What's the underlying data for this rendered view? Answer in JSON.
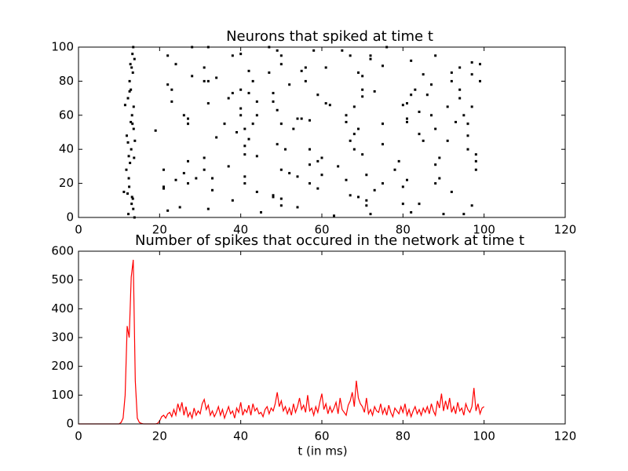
{
  "chart_data": [
    {
      "type": "scatter",
      "title": "Neurons that spiked at time t",
      "color": "#000000",
      "xlim": [
        0,
        120
      ],
      "xticks": [
        0,
        20,
        40,
        60,
        80,
        100,
        120
      ],
      "ylim": [
        0,
        100
      ],
      "yticks": [
        0,
        20,
        40,
        60,
        80,
        100
      ],
      "x": [
        11.2,
        12.1,
        12.3,
        11.8,
        11.9,
        11.5,
        12.2,
        12.6,
        12.8,
        13.3,
        13.5,
        13.1,
        12.9,
        13.2,
        13.6,
        13.0,
        12.7,
        12.4,
        12.5,
        13.1,
        13.4,
        13.8,
        13.5,
        13.2,
        13.7,
        13.9,
        13.3,
        13.6,
        13.4,
        13.8,
        12.4,
        12.2,
        12.9,
        12.6,
        19,
        21,
        21,
        21,
        22,
        22,
        22,
        23,
        23,
        24,
        24,
        25,
        26,
        26,
        27,
        27,
        27,
        27,
        28,
        28,
        29,
        31,
        31,
        31,
        31,
        32,
        32,
        32,
        32,
        33,
        33,
        34,
        34,
        36,
        37,
        37,
        38,
        38,
        38,
        39,
        40,
        40,
        40,
        40,
        41,
        41,
        41,
        41,
        41,
        42,
        42,
        42,
        43,
        43,
        44,
        44,
        44,
        44,
        45,
        47,
        47,
        48,
        48,
        48,
        48,
        49,
        49,
        49,
        50,
        50,
        50,
        50,
        50,
        50,
        51,
        52,
        52,
        53,
        54,
        54,
        54,
        55,
        55,
        56,
        56,
        57,
        57,
        57,
        57,
        58,
        59,
        59,
        59,
        60,
        60,
        61,
        61,
        62,
        63,
        64,
        65,
        66,
        66,
        66,
        67,
        67,
        67,
        68,
        68,
        68,
        69,
        69,
        69,
        70,
        70,
        70,
        70,
        71,
        71,
        71,
        72,
        72,
        72,
        73,
        73,
        75,
        75,
        75,
        75,
        76,
        78,
        79,
        80,
        80,
        80,
        81,
        81,
        81,
        81,
        82,
        82,
        82,
        83,
        84,
        84,
        84,
        85,
        85,
        86,
        87,
        87,
        88,
        88,
        88,
        88,
        89,
        89,
        90,
        91,
        91,
        92,
        92,
        92,
        93,
        94,
        94,
        94,
        95,
        95,
        96,
        96,
        96,
        97,
        97,
        97,
        97,
        98,
        98,
        98,
        99,
        99
      ],
      "values": [
        15,
        14,
        2,
        28,
        48,
        66,
        70,
        80,
        90,
        96,
        100,
        88,
        75,
        60,
        52,
        40,
        32,
        23,
        18,
        8,
        11,
        0,
        5,
        12,
        35,
        45,
        55,
        65,
        85,
        93,
        36,
        44,
        56,
        74,
        51,
        28,
        17,
        18,
        95,
        78,
        4,
        75,
        68,
        22,
        90,
        6,
        26,
        60,
        55,
        58,
        33,
        20,
        100,
        83,
        23,
        88,
        80,
        28,
        35,
        5,
        67,
        80,
        100,
        16,
        23,
        82,
        47,
        55,
        30,
        70,
        10,
        73,
        95,
        50,
        96,
        75,
        60,
        64,
        20,
        24,
        42,
        52,
        37,
        86,
        46,
        73,
        80,
        55,
        68,
        36,
        15,
        60,
        3,
        100,
        85,
        13,
        12,
        68,
        73,
        43,
        63,
        98,
        95,
        90,
        11,
        7,
        28,
        55,
        40,
        78,
        26,
        52,
        24,
        58,
        6,
        58,
        86,
        80,
        88,
        40,
        31,
        20,
        57,
        98,
        72,
        17,
        33,
        25,
        35,
        88,
        67,
        66,
        1,
        30,
        98,
        60,
        56,
        22,
        45,
        95,
        13,
        65,
        40,
        49,
        52,
        12,
        85,
        75,
        71,
        83,
        37,
        10,
        7,
        25,
        93,
        95,
        2,
        16,
        74,
        89,
        55,
        43,
        20,
        100,
        28,
        33,
        8,
        66,
        18,
        67,
        22,
        58,
        56,
        92,
        72,
        3,
        75,
        49,
        8,
        62,
        45,
        84,
        72,
        60,
        78,
        52,
        20,
        31,
        95,
        23,
        35,
        2,
        45,
        65,
        85,
        80,
        15,
        56,
        75,
        88,
        70,
        2,
        60,
        48,
        40,
        55,
        65,
        84,
        7,
        91,
        37,
        28,
        33,
        80,
        90
      ]
    },
    {
      "type": "line",
      "title": "Number of spikes that occured in the network at time t",
      "x_label": "t (in ms)",
      "color": "#ff0000",
      "xlim": [
        0,
        120
      ],
      "xticks": [
        0,
        20,
        40,
        60,
        80,
        100,
        120
      ],
      "ylim": [
        0,
        600
      ],
      "yticks": [
        0,
        100,
        200,
        300,
        400,
        500,
        600
      ],
      "x": [
        0,
        1,
        2,
        3,
        4,
        5,
        6,
        7,
        8,
        9,
        10,
        10.5,
        11,
        11.5,
        12,
        12.5,
        13,
        13.5,
        14,
        14.5,
        15,
        15.5,
        16,
        16.5,
        17,
        17.5,
        18,
        18.5,
        19,
        19.5,
        20,
        20.5,
        21,
        21.5,
        22,
        22.5,
        23,
        23.5,
        24,
        24.5,
        25,
        25.5,
        26,
        26.5,
        27,
        27.5,
        28,
        28.5,
        29,
        29.5,
        30,
        30.5,
        31,
        31.5,
        32,
        32.5,
        33,
        33.5,
        34,
        34.5,
        35,
        35.5,
        36,
        36.5,
        37,
        37.5,
        38,
        38.5,
        39,
        39.5,
        40,
        40.5,
        41,
        41.5,
        42,
        42.5,
        43,
        43.5,
        44,
        44.5,
        45,
        45.5,
        46,
        46.5,
        47,
        47.5,
        48,
        48.5,
        49,
        49.5,
        50,
        50.5,
        51,
        51.5,
        52,
        52.5,
        53,
        53.5,
        54,
        54.5,
        55,
        55.5,
        56,
        56.5,
        57,
        57.5,
        58,
        58.5,
        59,
        59.5,
        60,
        60.5,
        61,
        61.5,
        62,
        62.5,
        63,
        63.5,
        64,
        64.5,
        65,
        65.5,
        66,
        66.5,
        67,
        67.5,
        68,
        68.5,
        69,
        69.5,
        70,
        70.5,
        71,
        71.5,
        72,
        72.5,
        73,
        73.5,
        74,
        74.5,
        75,
        75.5,
        76,
        76.5,
        77,
        77.5,
        78,
        78.5,
        79,
        79.5,
        80,
        80.5,
        81,
        81.5,
        82,
        82.5,
        83,
        83.5,
        84,
        84.5,
        85,
        85.5,
        86,
        86.5,
        87,
        87.5,
        88,
        88.5,
        89,
        89.5,
        90,
        90.5,
        91,
        91.5,
        92,
        92.5,
        93,
        93.5,
        94,
        94.5,
        95,
        95.5,
        96,
        96.5,
        97,
        97.5,
        98,
        98.5,
        99,
        99.5,
        100
      ],
      "values": [
        0,
        0,
        0,
        0,
        0,
        0,
        0,
        0,
        0,
        0,
        0,
        5,
        20,
        100,
        340,
        300,
        510,
        570,
        150,
        20,
        5,
        2,
        0,
        0,
        0,
        0,
        0,
        0,
        0,
        2,
        10,
        25,
        30,
        20,
        35,
        40,
        25,
        50,
        30,
        70,
        45,
        75,
        30,
        60,
        25,
        40,
        20,
        55,
        30,
        45,
        35,
        70,
        85,
        50,
        65,
        30,
        45,
        25,
        40,
        60,
        30,
        50,
        20,
        40,
        60,
        35,
        45,
        20,
        55,
        40,
        75,
        30,
        50,
        40,
        65,
        30,
        70,
        45,
        55,
        35,
        40,
        25,
        50,
        60,
        35,
        55,
        45,
        70,
        110,
        60,
        80,
        45,
        60,
        35,
        55,
        30,
        70,
        40,
        60,
        90,
        50,
        65,
        40,
        100,
        45,
        55,
        30,
        60,
        40,
        75,
        105,
        50,
        70,
        35,
        60,
        40,
        55,
        75,
        35,
        90,
        50,
        40,
        30,
        65,
        80,
        110,
        60,
        150,
        90,
        70,
        60,
        40,
        90,
        35,
        50,
        30,
        60,
        45,
        40,
        70,
        35,
        55,
        30,
        65,
        40,
        25,
        55,
        45,
        35,
        60,
        40,
        70,
        30,
        50,
        25,
        45,
        60,
        35,
        50,
        30,
        55,
        40,
        60,
        35,
        70,
        45,
        30,
        80,
        55,
        105,
        45,
        80,
        50,
        90,
        40,
        60,
        35,
        75,
        45,
        55,
        30,
        70,
        50,
        40,
        60,
        125,
        45,
        70,
        35,
        55,
        60
      ]
    }
  ]
}
